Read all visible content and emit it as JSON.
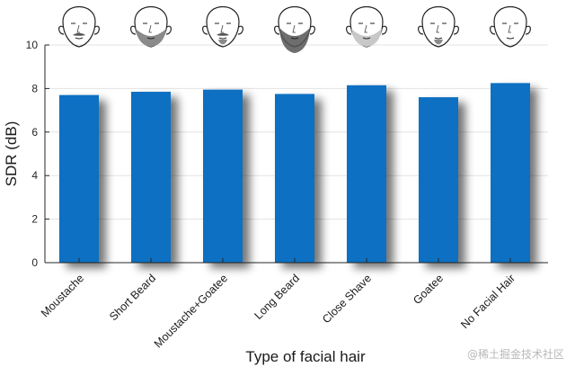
{
  "chart_data": {
    "type": "bar",
    "title": "",
    "xlabel": "Type of facial hair",
    "ylabel": "SDR (dB)",
    "ylim": [
      0,
      10
    ],
    "yticks": [
      0,
      2,
      4,
      6,
      8,
      10
    ],
    "grid": true,
    "categories": [
      "Moustache",
      "Short Beard",
      "Moustache+Goatee",
      "Long Beard",
      "Close Shave",
      "Goatee",
      "No Facial Hair"
    ],
    "values": [
      7.7,
      7.85,
      7.95,
      7.75,
      8.15,
      7.6,
      8.25
    ],
    "bar_color": "#0a6fc2",
    "face_icons": [
      "moustache-face-icon",
      "short-beard-face-icon",
      "moustache-goatee-face-icon",
      "long-beard-face-icon",
      "close-shave-face-icon",
      "goatee-face-icon",
      "no-facial-hair-face-icon"
    ]
  },
  "watermark": "@稀土掘金技术社区"
}
